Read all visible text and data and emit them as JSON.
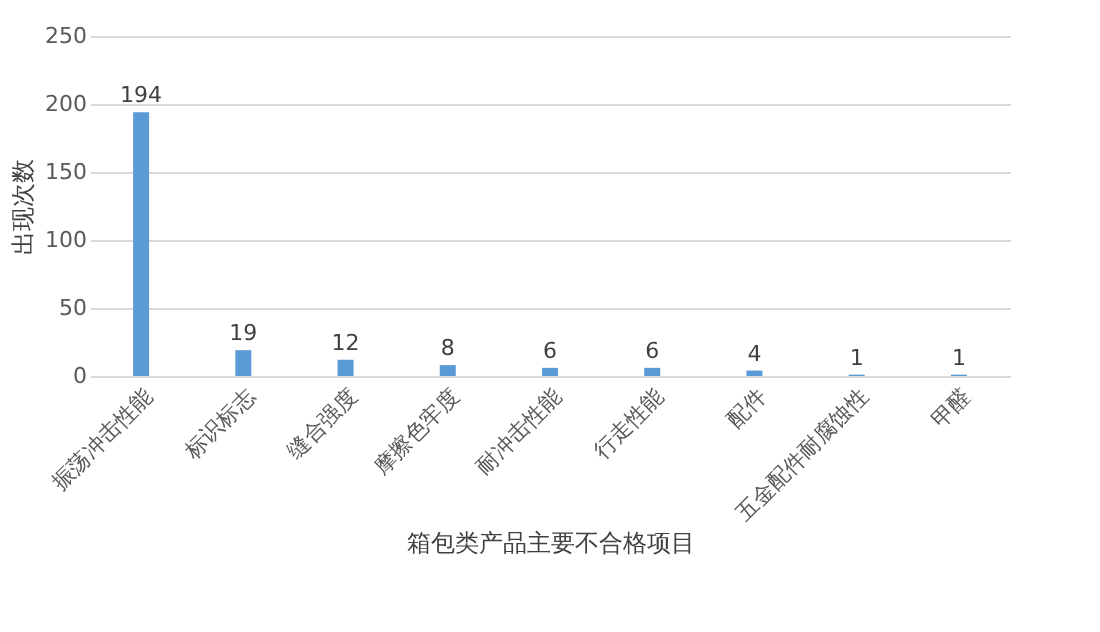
{
  "chart_data": {
    "type": "bar",
    "xlabel": "箱包类产品主要不合格项目",
    "ylabel": "出现次数",
    "categories": [
      "振荡冲击性能",
      "标识标志",
      "缝合强度",
      "摩擦色牢度",
      "耐冲击性能",
      "行走性能",
      "配件",
      "五金配件耐腐蚀性",
      "甲醛"
    ],
    "values": [
      194,
      19,
      12,
      8,
      6,
      6,
      4,
      1,
      1
    ],
    "color": "#5b9bd5",
    "ylim": [
      0,
      250
    ],
    "yticks": [
      0,
      50,
      100,
      150,
      200,
      250
    ],
    "grid": "y",
    "data_labels": true
  }
}
